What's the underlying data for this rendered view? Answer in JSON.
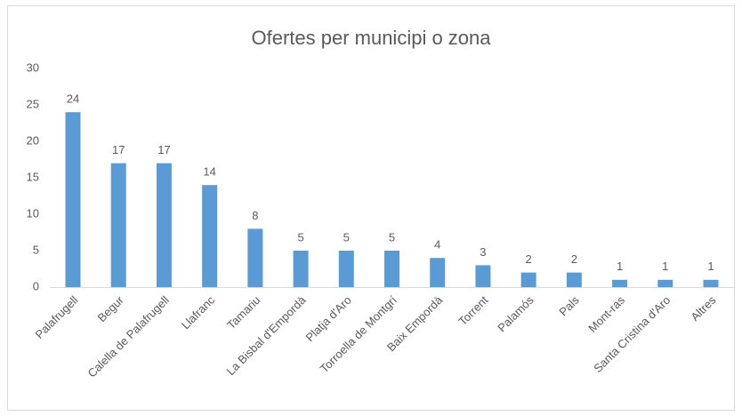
{
  "chart_data": {
    "type": "bar",
    "title": "Ofertes per municipi o zona",
    "categories": [
      "Palafrugell",
      "Begur",
      "Calella de Palafrugell",
      "Llafranc",
      "Tamariu",
      "La Bisbal d'Empordà",
      "Platja d'Aro",
      "Torroella de Montgrí",
      "Baix Empordà",
      "Torrent",
      "Palamós",
      "Pals",
      "Mont-ras",
      "Santa Cristina d'Aro",
      "Altres"
    ],
    "values": [
      24,
      17,
      17,
      14,
      8,
      5,
      5,
      5,
      4,
      3,
      2,
      2,
      1,
      1,
      1
    ],
    "color": "#5b9bd5",
    "ylim": [
      0,
      30
    ],
    "yticks": [
      0,
      5,
      10,
      15,
      20,
      25,
      30
    ],
    "grid": false
  }
}
